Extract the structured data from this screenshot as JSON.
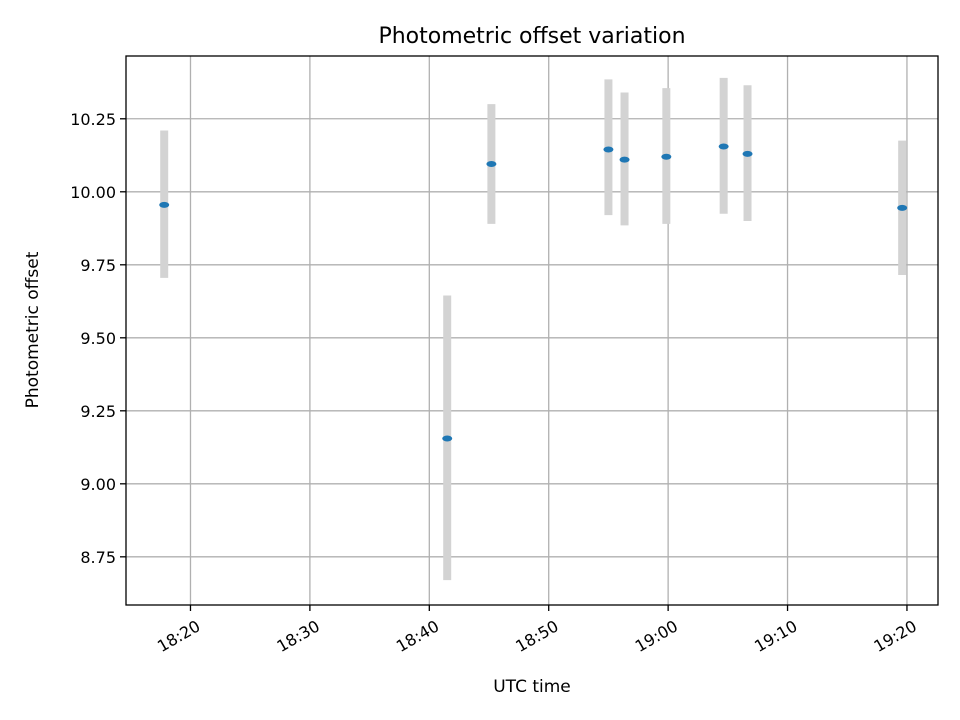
{
  "chart_data": {
    "type": "scatter",
    "title": "Photometric offset variation",
    "xlabel": "UTC time",
    "ylabel": "Photometric offset",
    "grid": true,
    "xlim_minutes": [
      1094.6,
      1162.6
    ],
    "ylim": [
      8.585,
      10.465
    ],
    "x_ticks": [
      {
        "minutes": 1100,
        "label": "18:20"
      },
      {
        "minutes": 1110,
        "label": "18:30"
      },
      {
        "minutes": 1120,
        "label": "18:40"
      },
      {
        "minutes": 1130,
        "label": "18:50"
      },
      {
        "minutes": 1140,
        "label": "19:00"
      },
      {
        "minutes": 1150,
        "label": "19:10"
      },
      {
        "minutes": 1160,
        "label": "19:20"
      }
    ],
    "y_ticks": [
      {
        "value": 8.75,
        "label": "8.75"
      },
      {
        "value": 9.0,
        "label": "9.00"
      },
      {
        "value": 9.25,
        "label": "9.25"
      },
      {
        "value": 9.5,
        "label": "9.50"
      },
      {
        "value": 9.75,
        "label": "9.75"
      },
      {
        "value": 10.0,
        "label": "10.00"
      },
      {
        "value": 10.25,
        "label": "10.25"
      }
    ],
    "series": [
      {
        "name": "photometric offset",
        "color": "#1f77b4",
        "error_color": "#d3d3d3",
        "points": [
          {
            "time": "18:17:50",
            "minutes": 1097.8,
            "y": 9.955,
            "ylow": 9.705,
            "yhigh": 10.21
          },
          {
            "time": "18:41:30",
            "minutes": 1121.5,
            "y": 9.155,
            "ylow": 8.67,
            "yhigh": 9.645
          },
          {
            "time": "18:45:10",
            "minutes": 1125.2,
            "y": 10.095,
            "ylow": 9.89,
            "yhigh": 10.3
          },
          {
            "time": "18:55:00",
            "minutes": 1135.0,
            "y": 10.145,
            "ylow": 9.92,
            "yhigh": 10.385
          },
          {
            "time": "18:56:20",
            "minutes": 1136.35,
            "y": 10.11,
            "ylow": 9.885,
            "yhigh": 10.34
          },
          {
            "time": "18:59:50",
            "minutes": 1139.85,
            "y": 10.12,
            "ylow": 9.89,
            "yhigh": 10.355
          },
          {
            "time": "19:04:40",
            "minutes": 1144.65,
            "y": 10.155,
            "ylow": 9.925,
            "yhigh": 10.39
          },
          {
            "time": "19:06:40",
            "minutes": 1146.65,
            "y": 10.13,
            "ylow": 9.9,
            "yhigh": 10.365
          },
          {
            "time": "19:19:35",
            "minutes": 1159.6,
            "y": 9.945,
            "ylow": 9.715,
            "yhigh": 10.175
          }
        ]
      }
    ]
  }
}
